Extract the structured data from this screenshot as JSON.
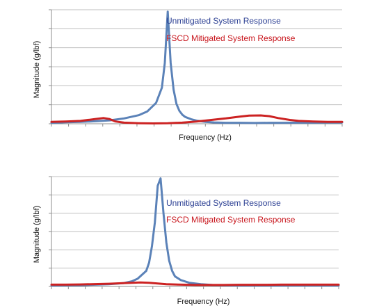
{
  "chart_data": [
    {
      "type": "line",
      "title": "",
      "xlabel": "Frequency (Hz)",
      "ylabel": "Magnitude (g/lbf)",
      "xlim": [
        0,
        100
      ],
      "ylim": [
        0,
        6
      ],
      "grid": true,
      "legend_placement": "top-right",
      "series": [
        {
          "name": "Unmitigated System Response",
          "color": "#5b82b8",
          "x": [
            0,
            5,
            10,
            15,
            20,
            25,
            30,
            33,
            36,
            38,
            39,
            40,
            41,
            42,
            43,
            44,
            45,
            46,
            48,
            50,
            53,
            56,
            60,
            65,
            70,
            75,
            80,
            85,
            90,
            95,
            100
          ],
          "y": [
            0.05,
            0.08,
            0.1,
            0.13,
            0.18,
            0.28,
            0.45,
            0.65,
            1.1,
            1.9,
            3.2,
            5.9,
            3.2,
            1.8,
            1.05,
            0.68,
            0.48,
            0.36,
            0.24,
            0.16,
            0.1,
            0.07,
            0.05,
            0.05,
            0.04,
            0.05,
            0.05,
            0.06,
            0.06,
            0.07,
            0.07
          ]
        },
        {
          "name": "FSCD Mitigated System Response",
          "color": "#cc2222",
          "x": [
            0,
            5,
            10,
            15,
            18,
            20,
            22,
            25,
            28,
            30,
            35,
            40,
            45,
            50,
            55,
            60,
            65,
            68,
            72,
            75,
            78,
            82,
            85,
            90,
            95,
            100
          ],
          "y": [
            0.1,
            0.12,
            0.15,
            0.25,
            0.3,
            0.25,
            0.12,
            0.06,
            0.04,
            0.03,
            0.02,
            0.03,
            0.06,
            0.12,
            0.2,
            0.28,
            0.38,
            0.43,
            0.44,
            0.4,
            0.3,
            0.2,
            0.15,
            0.12,
            0.1,
            0.1
          ]
        }
      ]
    },
    {
      "type": "line",
      "title": "",
      "xlabel": "Frequency (Hz)",
      "ylabel": "Magnitude (g/lbf)",
      "xlim": [
        0,
        100
      ],
      "ylim": [
        0,
        6
      ],
      "grid": true,
      "legend_placement": "right",
      "series": [
        {
          "name": "Unmitigated System Response",
          "color": "#5b82b8",
          "x": [
            0,
            10,
            20,
            25,
            28,
            30,
            33,
            34,
            35,
            36,
            37,
            38,
            39,
            40,
            41,
            42,
            43,
            45,
            48,
            52,
            56,
            60,
            65,
            70,
            75,
            80,
            85,
            90,
            95,
            100
          ],
          "y": [
            0.05,
            0.07,
            0.12,
            0.18,
            0.28,
            0.42,
            0.85,
            1.3,
            2.2,
            3.5,
            5.5,
            5.9,
            4.0,
            2.4,
            1.4,
            0.85,
            0.55,
            0.35,
            0.2,
            0.12,
            0.08,
            0.06,
            0.05,
            0.05,
            0.05,
            0.05,
            0.05,
            0.05,
            0.05,
            0.05
          ]
        },
        {
          "name": "FSCD Mitigated System Response",
          "color": "#cc2222",
          "x": [
            0,
            5,
            10,
            15,
            20,
            25,
            28,
            31,
            34,
            37,
            40,
            45,
            50,
            55,
            60,
            65,
            70,
            75,
            80,
            85,
            90,
            95,
            100
          ],
          "y": [
            0.1,
            0.1,
            0.11,
            0.13,
            0.15,
            0.18,
            0.2,
            0.22,
            0.2,
            0.16,
            0.12,
            0.1,
            0.08,
            0.08,
            0.08,
            0.09,
            0.09,
            0.09,
            0.1,
            0.1,
            0.1,
            0.1,
            0.1
          ]
        }
      ]
    }
  ]
}
